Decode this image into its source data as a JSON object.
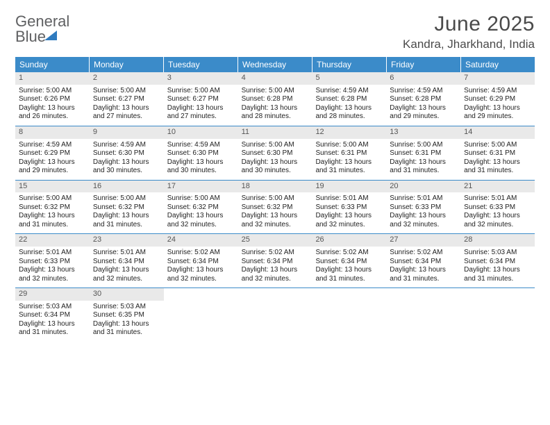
{
  "logo": {
    "word1": "General",
    "word2": "Blue"
  },
  "title": "June 2025",
  "location": "Kandra, Jharkhand, India",
  "days_of_week": [
    "Sunday",
    "Monday",
    "Tuesday",
    "Wednesday",
    "Thursday",
    "Friday",
    "Saturday"
  ],
  "colors": {
    "header_bg": "#3b8bc9",
    "header_text": "#ffffff",
    "daynum_bg": "#e9e9e9",
    "row_divider": "#3b8bc9",
    "logo_gray": "#5f6062",
    "logo_blue": "#2f7bbf"
  },
  "fonts": {
    "title_size_pt": 22,
    "location_size_pt": 13,
    "header_size_pt": 9,
    "body_size_pt": 7.5
  },
  "weeks": [
    [
      {
        "n": "1",
        "sunrise": "Sunrise: 5:00 AM",
        "sunset": "Sunset: 6:26 PM",
        "dl1": "Daylight: 13 hours",
        "dl2": "and 26 minutes."
      },
      {
        "n": "2",
        "sunrise": "Sunrise: 5:00 AM",
        "sunset": "Sunset: 6:27 PM",
        "dl1": "Daylight: 13 hours",
        "dl2": "and 27 minutes."
      },
      {
        "n": "3",
        "sunrise": "Sunrise: 5:00 AM",
        "sunset": "Sunset: 6:27 PM",
        "dl1": "Daylight: 13 hours",
        "dl2": "and 27 minutes."
      },
      {
        "n": "4",
        "sunrise": "Sunrise: 5:00 AM",
        "sunset": "Sunset: 6:28 PM",
        "dl1": "Daylight: 13 hours",
        "dl2": "and 28 minutes."
      },
      {
        "n": "5",
        "sunrise": "Sunrise: 4:59 AM",
        "sunset": "Sunset: 6:28 PM",
        "dl1": "Daylight: 13 hours",
        "dl2": "and 28 minutes."
      },
      {
        "n": "6",
        "sunrise": "Sunrise: 4:59 AM",
        "sunset": "Sunset: 6:28 PM",
        "dl1": "Daylight: 13 hours",
        "dl2": "and 29 minutes."
      },
      {
        "n": "7",
        "sunrise": "Sunrise: 4:59 AM",
        "sunset": "Sunset: 6:29 PM",
        "dl1": "Daylight: 13 hours",
        "dl2": "and 29 minutes."
      }
    ],
    [
      {
        "n": "8",
        "sunrise": "Sunrise: 4:59 AM",
        "sunset": "Sunset: 6:29 PM",
        "dl1": "Daylight: 13 hours",
        "dl2": "and 29 minutes."
      },
      {
        "n": "9",
        "sunrise": "Sunrise: 4:59 AM",
        "sunset": "Sunset: 6:30 PM",
        "dl1": "Daylight: 13 hours",
        "dl2": "and 30 minutes."
      },
      {
        "n": "10",
        "sunrise": "Sunrise: 4:59 AM",
        "sunset": "Sunset: 6:30 PM",
        "dl1": "Daylight: 13 hours",
        "dl2": "and 30 minutes."
      },
      {
        "n": "11",
        "sunrise": "Sunrise: 5:00 AM",
        "sunset": "Sunset: 6:30 PM",
        "dl1": "Daylight: 13 hours",
        "dl2": "and 30 minutes."
      },
      {
        "n": "12",
        "sunrise": "Sunrise: 5:00 AM",
        "sunset": "Sunset: 6:31 PM",
        "dl1": "Daylight: 13 hours",
        "dl2": "and 31 minutes."
      },
      {
        "n": "13",
        "sunrise": "Sunrise: 5:00 AM",
        "sunset": "Sunset: 6:31 PM",
        "dl1": "Daylight: 13 hours",
        "dl2": "and 31 minutes."
      },
      {
        "n": "14",
        "sunrise": "Sunrise: 5:00 AM",
        "sunset": "Sunset: 6:31 PM",
        "dl1": "Daylight: 13 hours",
        "dl2": "and 31 minutes."
      }
    ],
    [
      {
        "n": "15",
        "sunrise": "Sunrise: 5:00 AM",
        "sunset": "Sunset: 6:32 PM",
        "dl1": "Daylight: 13 hours",
        "dl2": "and 31 minutes."
      },
      {
        "n": "16",
        "sunrise": "Sunrise: 5:00 AM",
        "sunset": "Sunset: 6:32 PM",
        "dl1": "Daylight: 13 hours",
        "dl2": "and 31 minutes."
      },
      {
        "n": "17",
        "sunrise": "Sunrise: 5:00 AM",
        "sunset": "Sunset: 6:32 PM",
        "dl1": "Daylight: 13 hours",
        "dl2": "and 32 minutes."
      },
      {
        "n": "18",
        "sunrise": "Sunrise: 5:00 AM",
        "sunset": "Sunset: 6:32 PM",
        "dl1": "Daylight: 13 hours",
        "dl2": "and 32 minutes."
      },
      {
        "n": "19",
        "sunrise": "Sunrise: 5:01 AM",
        "sunset": "Sunset: 6:33 PM",
        "dl1": "Daylight: 13 hours",
        "dl2": "and 32 minutes."
      },
      {
        "n": "20",
        "sunrise": "Sunrise: 5:01 AM",
        "sunset": "Sunset: 6:33 PM",
        "dl1": "Daylight: 13 hours",
        "dl2": "and 32 minutes."
      },
      {
        "n": "21",
        "sunrise": "Sunrise: 5:01 AM",
        "sunset": "Sunset: 6:33 PM",
        "dl1": "Daylight: 13 hours",
        "dl2": "and 32 minutes."
      }
    ],
    [
      {
        "n": "22",
        "sunrise": "Sunrise: 5:01 AM",
        "sunset": "Sunset: 6:33 PM",
        "dl1": "Daylight: 13 hours",
        "dl2": "and 32 minutes."
      },
      {
        "n": "23",
        "sunrise": "Sunrise: 5:01 AM",
        "sunset": "Sunset: 6:34 PM",
        "dl1": "Daylight: 13 hours",
        "dl2": "and 32 minutes."
      },
      {
        "n": "24",
        "sunrise": "Sunrise: 5:02 AM",
        "sunset": "Sunset: 6:34 PM",
        "dl1": "Daylight: 13 hours",
        "dl2": "and 32 minutes."
      },
      {
        "n": "25",
        "sunrise": "Sunrise: 5:02 AM",
        "sunset": "Sunset: 6:34 PM",
        "dl1": "Daylight: 13 hours",
        "dl2": "and 32 minutes."
      },
      {
        "n": "26",
        "sunrise": "Sunrise: 5:02 AM",
        "sunset": "Sunset: 6:34 PM",
        "dl1": "Daylight: 13 hours",
        "dl2": "and 31 minutes."
      },
      {
        "n": "27",
        "sunrise": "Sunrise: 5:02 AM",
        "sunset": "Sunset: 6:34 PM",
        "dl1": "Daylight: 13 hours",
        "dl2": "and 31 minutes."
      },
      {
        "n": "28",
        "sunrise": "Sunrise: 5:03 AM",
        "sunset": "Sunset: 6:34 PM",
        "dl1": "Daylight: 13 hours",
        "dl2": "and 31 minutes."
      }
    ],
    [
      {
        "n": "29",
        "sunrise": "Sunrise: 5:03 AM",
        "sunset": "Sunset: 6:34 PM",
        "dl1": "Daylight: 13 hours",
        "dl2": "and 31 minutes."
      },
      {
        "n": "30",
        "sunrise": "Sunrise: 5:03 AM",
        "sunset": "Sunset: 6:35 PM",
        "dl1": "Daylight: 13 hours",
        "dl2": "and 31 minutes."
      },
      null,
      null,
      null,
      null,
      null
    ]
  ]
}
